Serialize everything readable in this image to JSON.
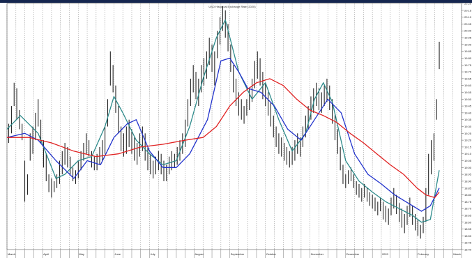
{
  "chart_data": {
    "type": "line",
    "title": "USD Historical Exchange Rate (2020)",
    "ylim": [
      18.4,
      20.2
    ],
    "y_ticks": [
      18.4,
      18.45,
      18.5,
      18.55,
      18.6,
      18.65,
      18.7,
      18.75,
      18.8,
      18.85,
      18.9,
      18.95,
      19.0,
      19.05,
      19.1,
      19.15,
      19.2,
      19.25,
      19.3,
      19.35,
      19.4,
      19.45,
      19.5,
      19.55,
      19.6,
      19.65,
      19.7,
      19.75,
      19.8,
      19.85,
      19.9,
      19.95,
      20.0,
      20.05,
      20.1,
      20.15,
      20.2
    ],
    "y_tick_labels": [
      "18.40",
      "18.45",
      "18.50",
      "18.55",
      "18.60",
      "18.65",
      "18.70",
      "18.75",
      "18.80",
      "18.85",
      "18.90",
      "18.95",
      "19.00",
      "19.05",
      "19.10",
      "19.15",
      "19.20",
      "19.25",
      "19.30",
      "19.35",
      "19.40",
      "19.45",
      "19.50",
      "19.55",
      "19.60",
      "19.65",
      "19.70",
      "19.75",
      "19.80",
      "19.85",
      "19.90",
      "19.95",
      "20.00",
      "20.05",
      "20.10",
      "20.15",
      "20.20"
    ],
    "x_tick_labels": [
      "March",
      "April",
      "May",
      "June",
      "July",
      "August",
      "September",
      "October",
      "November",
      "December",
      "2020",
      "February",
      "March"
    ],
    "x_tick_positions": [
      0,
      4,
      8,
      12,
      16,
      21,
      25,
      29,
      34,
      38,
      42,
      46,
      50
    ],
    "x_range": [
      0,
      51
    ],
    "grid": true,
    "ohlc": [
      {
        "x": 0.2,
        "high": 19.32,
        "low": 19.18
      },
      {
        "x": 0.5,
        "high": 19.45,
        "low": 19.25
      },
      {
        "x": 0.8,
        "high": 19.62,
        "low": 19.45
      },
      {
        "x": 1.1,
        "high": 19.58,
        "low": 19.35
      },
      {
        "x": 1.4,
        "high": 19.42,
        "low": 19.28
      },
      {
        "x": 1.7,
        "high": 19.32,
        "low": 19.2
      },
      {
        "x": 2.0,
        "high": 19.05,
        "low": 18.75
      },
      {
        "x": 2.3,
        "high": 18.95,
        "low": 18.8
      },
      {
        "x": 2.6,
        "high": 19.25,
        "low": 19.05
      },
      {
        "x": 2.9,
        "high": 19.3,
        "low": 19.1
      },
      {
        "x": 3.2,
        "high": 19.4,
        "low": 19.2
      },
      {
        "x": 3.5,
        "high": 19.5,
        "low": 19.3
      },
      {
        "x": 3.8,
        "high": 19.35,
        "low": 19.18
      },
      {
        "x": 4.1,
        "high": 19.2,
        "low": 19.0
      },
      {
        "x": 4.4,
        "high": 19.1,
        "low": 18.9
      },
      {
        "x": 4.7,
        "high": 18.95,
        "low": 18.82
      },
      {
        "x": 5.0,
        "high": 18.92,
        "low": 18.78
      },
      {
        "x": 5.3,
        "high": 18.9,
        "low": 18.82
      },
      {
        "x": 5.6,
        "high": 18.95,
        "low": 18.85
      },
      {
        "x": 5.9,
        "high": 19.05,
        "low": 18.88
      },
      {
        "x": 6.2,
        "high": 19.12,
        "low": 18.95
      },
      {
        "x": 6.5,
        "high": 19.18,
        "low": 19.02
      },
      {
        "x": 6.8,
        "high": 19.15,
        "low": 19.0
      },
      {
        "x": 7.1,
        "high": 19.08,
        "low": 18.95
      },
      {
        "x": 7.4,
        "high": 19.0,
        "low": 18.9
      },
      {
        "x": 7.7,
        "high": 18.98,
        "low": 18.88
      },
      {
        "x": 8.0,
        "high": 19.05,
        "low": 18.92
      },
      {
        "x": 8.3,
        "high": 19.12,
        "low": 18.98
      },
      {
        "x": 8.6,
        "high": 19.18,
        "low": 19.05
      },
      {
        "x": 8.9,
        "high": 19.25,
        "low": 19.1
      },
      {
        "x": 9.2,
        "high": 19.2,
        "low": 19.08
      },
      {
        "x": 9.5,
        "high": 19.12,
        "low": 19.0
      },
      {
        "x": 9.8,
        "high": 19.08,
        "low": 18.98
      },
      {
        "x": 10.1,
        "high": 19.1,
        "low": 18.98
      },
      {
        "x": 10.4,
        "high": 19.15,
        "low": 19.02
      },
      {
        "x": 10.7,
        "high": 19.2,
        "low": 19.05
      },
      {
        "x": 11.0,
        "high": 19.3,
        "low": 19.1
      },
      {
        "x": 11.3,
        "high": 19.5,
        "low": 19.3
      },
      {
        "x": 11.6,
        "high": 19.85,
        "low": 19.6
      },
      {
        "x": 11.9,
        "high": 19.75,
        "low": 19.55
      },
      {
        "x": 12.2,
        "high": 19.6,
        "low": 19.4
      },
      {
        "x": 12.5,
        "high": 19.45,
        "low": 19.25
      },
      {
        "x": 12.8,
        "high": 19.3,
        "low": 19.12
      },
      {
        "x": 13.1,
        "high": 19.25,
        "low": 19.08
      },
      {
        "x": 13.4,
        "high": 19.3,
        "low": 19.1
      },
      {
        "x": 13.7,
        "high": 19.35,
        "low": 19.15
      },
      {
        "x": 14.0,
        "high": 19.28,
        "low": 19.1
      },
      {
        "x": 14.3,
        "high": 19.22,
        "low": 19.05
      },
      {
        "x": 14.6,
        "high": 19.18,
        "low": 19.02
      },
      {
        "x": 14.9,
        "high": 19.25,
        "low": 19.08
      },
      {
        "x": 15.2,
        "high": 19.3,
        "low": 19.12
      },
      {
        "x": 15.5,
        "high": 19.25,
        "low": 19.05
      },
      {
        "x": 15.8,
        "high": 19.15,
        "low": 18.98
      },
      {
        "x": 16.1,
        "high": 19.1,
        "low": 18.95
      },
      {
        "x": 16.4,
        "high": 19.05,
        "low": 18.92
      },
      {
        "x": 16.7,
        "high": 19.08,
        "low": 18.95
      },
      {
        "x": 17.0,
        "high": 19.12,
        "low": 18.98
      },
      {
        "x": 17.3,
        "high": 19.1,
        "low": 18.95
      },
      {
        "x": 17.6,
        "high": 19.05,
        "low": 18.9
      },
      {
        "x": 17.9,
        "high": 19.02,
        "low": 18.9
      },
      {
        "x": 18.2,
        "high": 19.08,
        "low": 18.95
      },
      {
        "x": 18.5,
        "high": 19.12,
        "low": 18.98
      },
      {
        "x": 18.8,
        "high": 19.1,
        "low": 19.0
      },
      {
        "x": 19.1,
        "high": 19.15,
        "low": 19.02
      },
      {
        "x": 19.4,
        "high": 19.2,
        "low": 19.05
      },
      {
        "x": 19.7,
        "high": 19.25,
        "low": 19.1
      },
      {
        "x": 20.0,
        "high": 19.35,
        "low": 19.15
      },
      {
        "x": 20.3,
        "high": 19.5,
        "low": 19.3
      },
      {
        "x": 20.6,
        "high": 19.65,
        "low": 19.45
      },
      {
        "x": 20.9,
        "high": 19.75,
        "low": 19.55
      },
      {
        "x": 21.2,
        "high": 19.7,
        "low": 19.5
      },
      {
        "x": 21.5,
        "high": 19.65,
        "low": 19.45
      },
      {
        "x": 21.8,
        "high": 19.75,
        "low": 19.55
      },
      {
        "x": 22.1,
        "high": 19.8,
        "low": 19.6
      },
      {
        "x": 22.4,
        "high": 19.85,
        "low": 19.65
      },
      {
        "x": 22.7,
        "high": 19.95,
        "low": 19.75
      },
      {
        "x": 23.0,
        "high": 19.9,
        "low": 19.7
      },
      {
        "x": 23.3,
        "high": 19.85,
        "low": 19.6
      },
      {
        "x": 23.6,
        "high": 20.0,
        "low": 19.8
      },
      {
        "x": 23.9,
        "high": 20.1,
        "low": 19.9
      },
      {
        "x": 24.2,
        "high": 20.18,
        "low": 20.0
      },
      {
        "x": 24.5,
        "high": 20.15,
        "low": 19.95
      },
      {
        "x": 24.8,
        "high": 20.05,
        "low": 19.85
      },
      {
        "x": 25.1,
        "high": 19.9,
        "low": 19.7
      },
      {
        "x": 25.4,
        "high": 19.75,
        "low": 19.55
      },
      {
        "x": 25.7,
        "high": 19.65,
        "low": 19.45
      },
      {
        "x": 26.0,
        "high": 19.55,
        "low": 19.38
      },
      {
        "x": 26.3,
        "high": 19.5,
        "low": 19.35
      },
      {
        "x": 26.6,
        "high": 19.45,
        "low": 19.32
      },
      {
        "x": 26.9,
        "high": 19.5,
        "low": 19.38
      },
      {
        "x": 27.2,
        "high": 19.58,
        "low": 19.42
      },
      {
        "x": 27.5,
        "high": 19.65,
        "low": 19.48
      },
      {
        "x": 27.8,
        "high": 19.78,
        "low": 19.58
      },
      {
        "x": 28.1,
        "high": 19.85,
        "low": 19.65
      },
      {
        "x": 28.4,
        "high": 19.8,
        "low": 19.6
      },
      {
        "x": 28.7,
        "high": 19.7,
        "low": 19.5
      },
      {
        "x": 29.0,
        "high": 19.62,
        "low": 19.45
      },
      {
        "x": 29.3,
        "high": 19.55,
        "low": 19.38
      },
      {
        "x": 29.6,
        "high": 19.48,
        "low": 19.3
      },
      {
        "x": 29.9,
        "high": 19.38,
        "low": 19.22
      },
      {
        "x": 30.2,
        "high": 19.3,
        "low": 19.15
      },
      {
        "x": 30.5,
        "high": 19.25,
        "low": 19.1
      },
      {
        "x": 30.8,
        "high": 19.22,
        "low": 19.08
      },
      {
        "x": 31.1,
        "high": 19.18,
        "low": 19.05
      },
      {
        "x": 31.4,
        "high": 19.15,
        "low": 19.02
      },
      {
        "x": 31.7,
        "high": 19.12,
        "low": 19.0
      },
      {
        "x": 32.0,
        "high": 19.15,
        "low": 19.02
      },
      {
        "x": 32.3,
        "high": 19.2,
        "low": 19.05
      },
      {
        "x": 32.6,
        "high": 19.25,
        "low": 19.1
      },
      {
        "x": 32.9,
        "high": 19.22,
        "low": 19.08
      },
      {
        "x": 33.2,
        "high": 19.3,
        "low": 19.15
      },
      {
        "x": 33.5,
        "high": 19.38,
        "low": 19.22
      },
      {
        "x": 33.8,
        "high": 19.45,
        "low": 19.28
      },
      {
        "x": 34.1,
        "high": 19.52,
        "low": 19.35
      },
      {
        "x": 34.4,
        "high": 19.58,
        "low": 19.4
      },
      {
        "x": 34.7,
        "high": 19.62,
        "low": 19.45
      },
      {
        "x": 35.0,
        "high": 19.58,
        "low": 19.42
      },
      {
        "x": 35.3,
        "high": 19.55,
        "low": 19.4
      },
      {
        "x": 35.6,
        "high": 19.6,
        "low": 19.45
      },
      {
        "x": 35.9,
        "high": 19.65,
        "low": 19.48
      },
      {
        "x": 36.2,
        "high": 19.6,
        "low": 19.42
      },
      {
        "x": 36.5,
        "high": 19.5,
        "low": 19.32
      },
      {
        "x": 36.8,
        "high": 19.4,
        "low": 19.2
      },
      {
        "x": 37.1,
        "high": 19.28,
        "low": 19.1
      },
      {
        "x": 37.4,
        "high": 19.15,
        "low": 18.98
      },
      {
        "x": 37.7,
        "high": 19.02,
        "low": 18.88
      },
      {
        "x": 38.0,
        "high": 18.95,
        "low": 18.85
      },
      {
        "x": 38.3,
        "high": 18.98,
        "low": 18.88
      },
      {
        "x": 38.6,
        "high": 19.0,
        "low": 18.9
      },
      {
        "x": 38.9,
        "high": 18.95,
        "low": 18.85
      },
      {
        "x": 39.2,
        "high": 18.9,
        "low": 18.8
      },
      {
        "x": 39.5,
        "high": 18.88,
        "low": 18.78
      },
      {
        "x": 39.8,
        "high": 18.85,
        "low": 18.75
      },
      {
        "x": 40.1,
        "high": 18.88,
        "low": 18.78
      },
      {
        "x": 40.4,
        "high": 18.85,
        "low": 18.75
      },
      {
        "x": 40.7,
        "high": 18.82,
        "low": 18.72
      },
      {
        "x": 41.0,
        "high": 18.8,
        "low": 18.7
      },
      {
        "x": 41.3,
        "high": 18.78,
        "low": 18.68
      },
      {
        "x": 41.6,
        "high": 18.75,
        "low": 18.65
      },
      {
        "x": 41.9,
        "high": 18.78,
        "low": 18.68
      },
      {
        "x": 42.2,
        "high": 18.75,
        "low": 18.62
      },
      {
        "x": 42.5,
        "high": 18.72,
        "low": 18.6
      },
      {
        "x": 42.8,
        "high": 18.7,
        "low": 18.58
      },
      {
        "x": 43.1,
        "high": 18.78,
        "low": 18.65
      },
      {
        "x": 43.4,
        "high": 18.85,
        "low": 18.7
      },
      {
        "x": 43.7,
        "high": 18.8,
        "low": 18.66
      },
      {
        "x": 44.0,
        "high": 18.74,
        "low": 18.6
      },
      {
        "x": 44.3,
        "high": 18.7,
        "low": 18.56
      },
      {
        "x": 44.6,
        "high": 18.66,
        "low": 18.52
      },
      {
        "x": 44.9,
        "high": 18.72,
        "low": 18.58
      },
      {
        "x": 45.2,
        "high": 18.78,
        "low": 18.64
      },
      {
        "x": 45.5,
        "high": 18.72,
        "low": 18.58
      },
      {
        "x": 45.8,
        "high": 18.66,
        "low": 18.54
      },
      {
        "x": 46.1,
        "high": 18.62,
        "low": 18.5
      },
      {
        "x": 46.4,
        "high": 18.58,
        "low": 18.48
      },
      {
        "x": 46.7,
        "high": 18.64,
        "low": 18.52
      },
      {
        "x": 47.0,
        "high": 18.85,
        "low": 18.6
      },
      {
        "x": 47.3,
        "high": 19.1,
        "low": 18.8
      },
      {
        "x": 47.6,
        "high": 19.2,
        "low": 18.95
      },
      {
        "x": 47.9,
        "high": 19.25,
        "low": 19.05
      },
      {
        "x": 48.2,
        "high": 19.5,
        "low": 19.35
      },
      {
        "x": 48.5,
        "high": 19.92,
        "low": 19.72
      }
    ],
    "series": [
      {
        "color": "#2e8b8b",
        "x": [
          0.0,
          1.5,
          3.5,
          5.5,
          6.5,
          8.0,
          9.5,
          11.0,
          12.0,
          13.0,
          14.5,
          16.0,
          17.5,
          19.0,
          20.5,
          22.0,
          23.5,
          24.5,
          26.0,
          27.5,
          29.0,
          30.5,
          32.0,
          33.5,
          34.5,
          35.5,
          36.5,
          38.0,
          39.5,
          41.0,
          42.5,
          44.0,
          45.5,
          46.5,
          47.5,
          48.5
        ],
        "y": [
          19.28,
          19.38,
          19.25,
          18.92,
          18.95,
          19.05,
          19.08,
          19.3,
          19.52,
          19.4,
          19.2,
          19.1,
          19.02,
          19.05,
          19.3,
          19.65,
          19.95,
          20.08,
          19.7,
          19.5,
          19.62,
          19.35,
          19.12,
          19.25,
          19.5,
          19.62,
          19.48,
          19.05,
          18.9,
          18.82,
          18.75,
          18.7,
          18.65,
          18.6,
          18.62,
          18.98
        ]
      },
      {
        "color": "#2233cc",
        "x": [
          0.0,
          2.0,
          3.5,
          5.5,
          7.5,
          9.0,
          10.5,
          12.0,
          13.5,
          14.5,
          16.0,
          17.5,
          19.0,
          20.5,
          22.5,
          24.0,
          25.0,
          26.0,
          27.0,
          28.5,
          30.0,
          31.5,
          33.0,
          34.5,
          36.0,
          37.5,
          39.0,
          40.5,
          42.0,
          43.5,
          44.5,
          45.5,
          46.5,
          47.5,
          48.5
        ],
        "y": [
          19.22,
          19.25,
          19.2,
          19.05,
          18.92,
          19.05,
          19.02,
          19.22,
          19.32,
          19.35,
          19.12,
          19.0,
          19.0,
          19.1,
          19.35,
          19.78,
          19.8,
          19.7,
          19.58,
          19.55,
          19.45,
          19.28,
          19.2,
          19.35,
          19.5,
          19.4,
          19.1,
          18.95,
          18.88,
          18.8,
          18.76,
          18.72,
          18.68,
          18.72,
          18.85
        ]
      },
      {
        "color": "#e02222",
        "x": [
          0.0,
          2.5,
          5.0,
          7.5,
          10.0,
          12.5,
          15.0,
          17.5,
          20.0,
          22.0,
          23.5,
          25.0,
          26.5,
          28.0,
          29.5,
          31.0,
          32.5,
          34.0,
          35.5,
          37.0,
          38.5,
          40.0,
          41.5,
          43.0,
          44.5,
          46.0,
          47.0,
          48.0,
          48.5
        ],
        "y": [
          19.22,
          19.22,
          19.18,
          19.12,
          19.08,
          19.1,
          19.15,
          19.17,
          19.2,
          19.22,
          19.3,
          19.45,
          19.55,
          19.62,
          19.65,
          19.6,
          19.5,
          19.42,
          19.38,
          19.33,
          19.25,
          19.18,
          19.1,
          19.02,
          18.95,
          18.85,
          18.8,
          18.78,
          18.82
        ]
      }
    ]
  }
}
